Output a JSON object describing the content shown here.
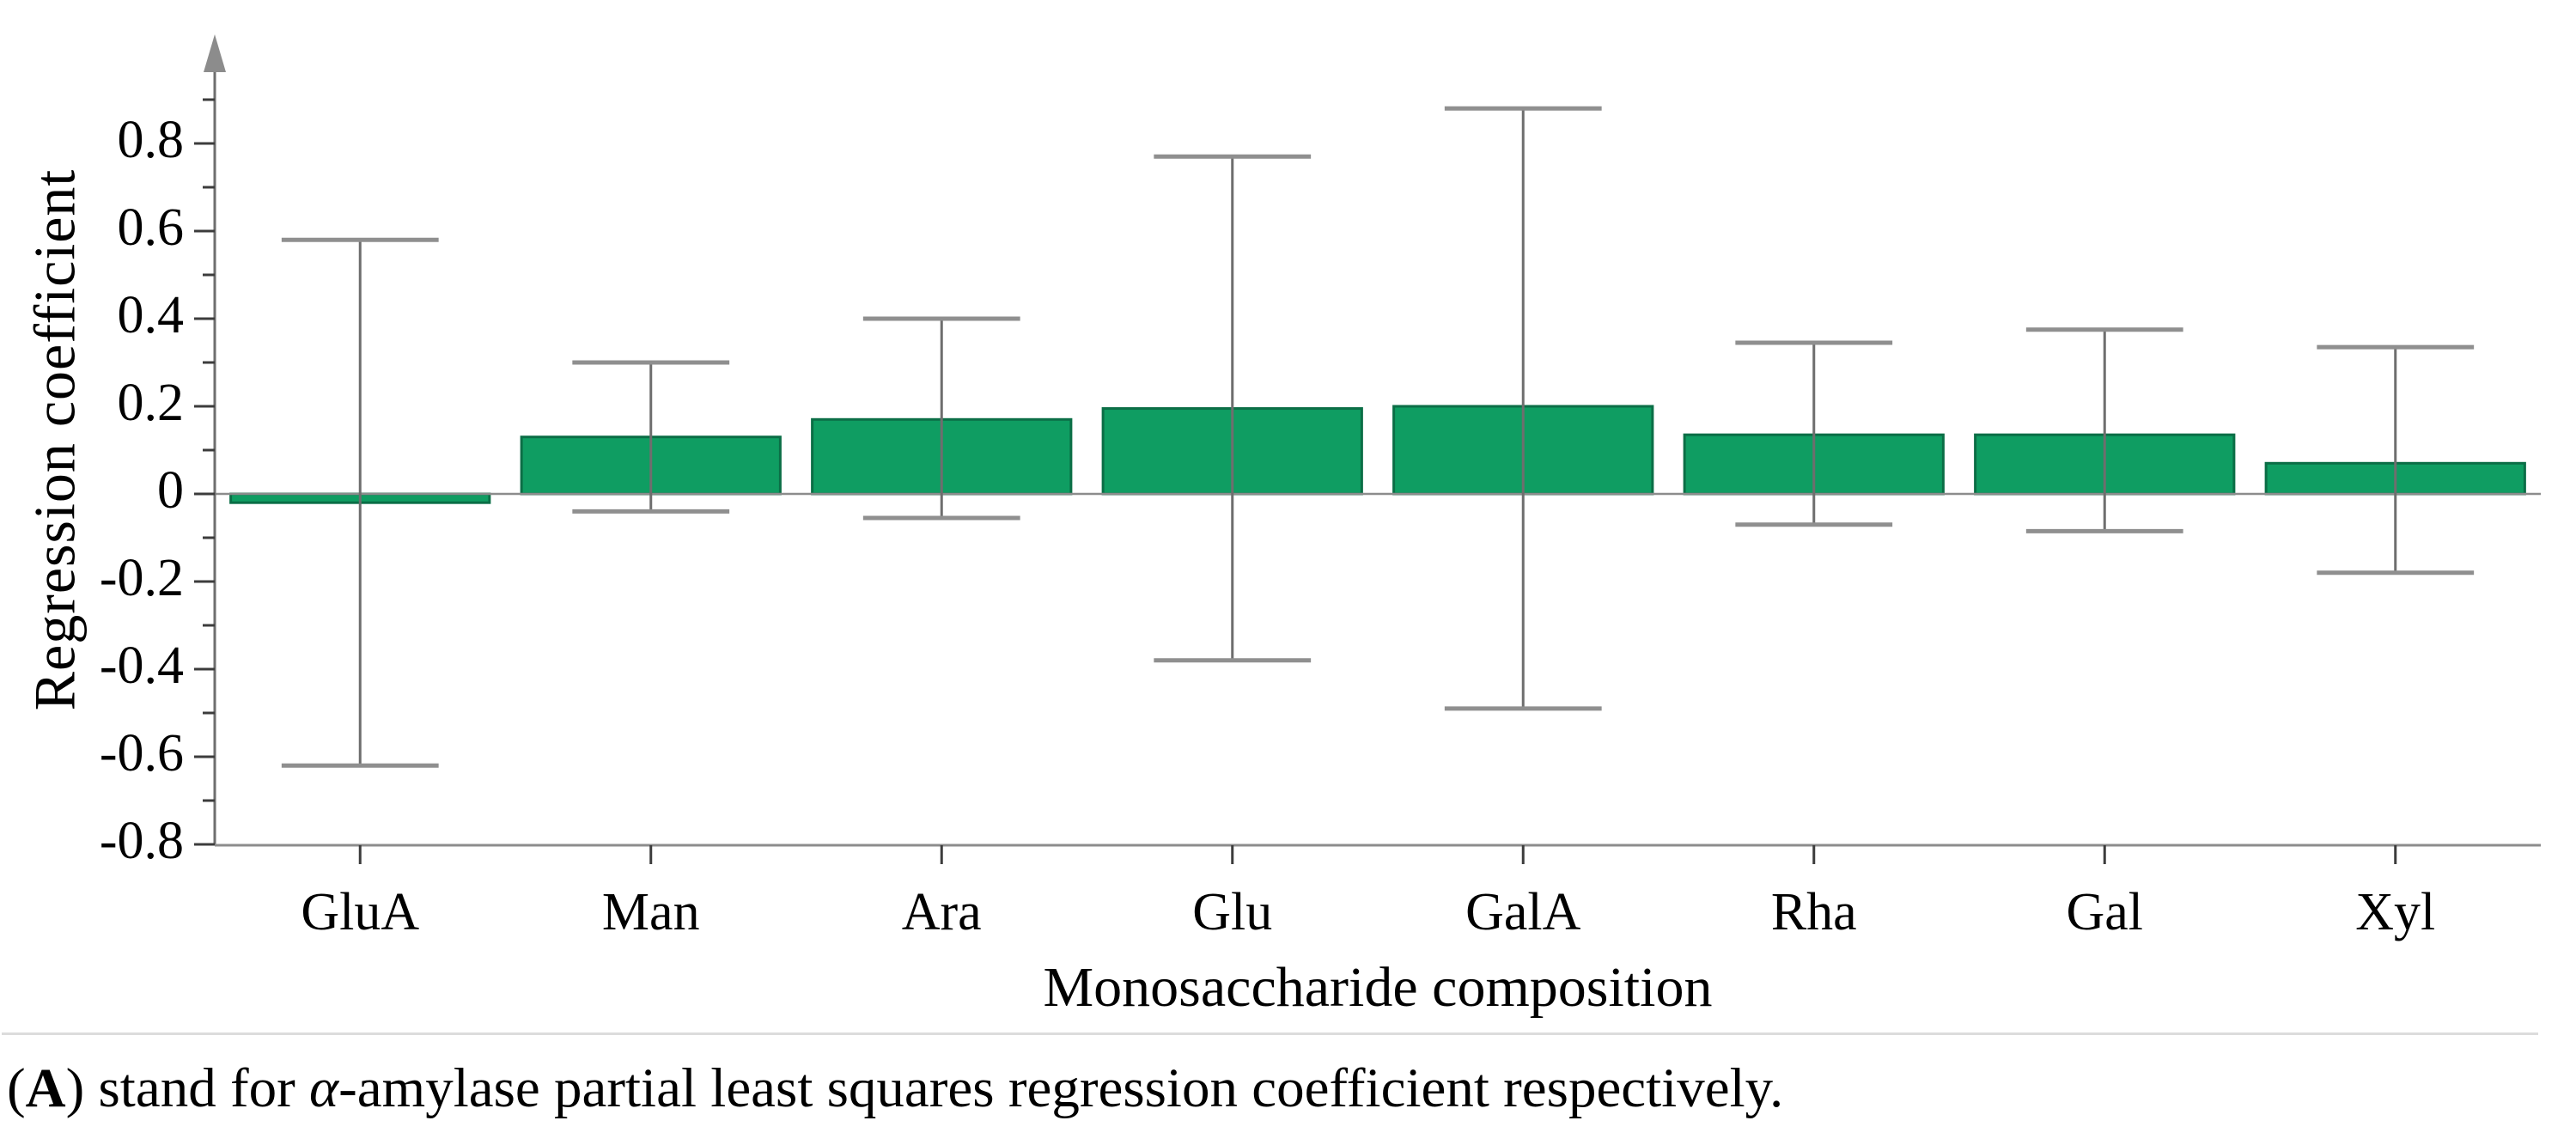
{
  "chart_data": {
    "type": "bar",
    "title": "",
    "categories": [
      "GluA",
      "Man",
      "Ara",
      "Glu",
      "GalA",
      "Rha",
      "Gal",
      "Xyl"
    ],
    "values": [
      -0.02,
      0.13,
      0.17,
      0.195,
      0.2,
      0.135,
      0.135,
      0.07
    ],
    "series": [
      {
        "name": "alpha-amylase PLS regression coefficient",
        "values": [
          -0.02,
          0.13,
          0.17,
          0.195,
          0.2,
          0.135,
          0.135,
          0.07
        ]
      }
    ],
    "error_upper": [
      0.58,
      0.3,
      0.4,
      0.77,
      0.88,
      0.345,
      0.375,
      0.335
    ],
    "error_lower": [
      -0.62,
      -0.04,
      -0.055,
      -0.38,
      -0.49,
      -0.07,
      -0.085,
      -0.18
    ],
    "xlabel": "Monosaccharide composition",
    "ylabel": "Regression coefficient",
    "ylim": [
      -0.8,
      0.9
    ],
    "y_major_ticks": [
      0.8,
      0.6,
      0.4,
      0.2,
      0,
      -0.2,
      -0.4,
      -0.6,
      -0.8
    ],
    "y_tick_labels": [
      "0.8",
      "0.6",
      "0.4",
      "0.2",
      "0",
      "-0.2",
      "-0.4",
      "-0.6",
      "-0.8"
    ],
    "y_minor_step": 0.1,
    "grid": false,
    "legend": false,
    "colors": {
      "bar_fill": "#0F9D62",
      "bar_border": "#0B6E46",
      "error_line": "#6E6E6E",
      "error_cap": "#8F8F8F",
      "axis_line": "#8C8C8C",
      "y_axis_line": "#6E6E6E",
      "tick": "#3C3C3C",
      "arrow": "#8C8C8C",
      "text": "#000000",
      "caption_rule": "#DCDCDC"
    }
  },
  "caption": {
    "segments": [
      {
        "text": "("
      },
      {
        "text": "A",
        "bold": true
      },
      {
        "text": ") stand for "
      },
      {
        "text": "α",
        "italic": true
      },
      {
        "text": "-amylase partial least squares regression coefficient respectively."
      }
    ]
  }
}
